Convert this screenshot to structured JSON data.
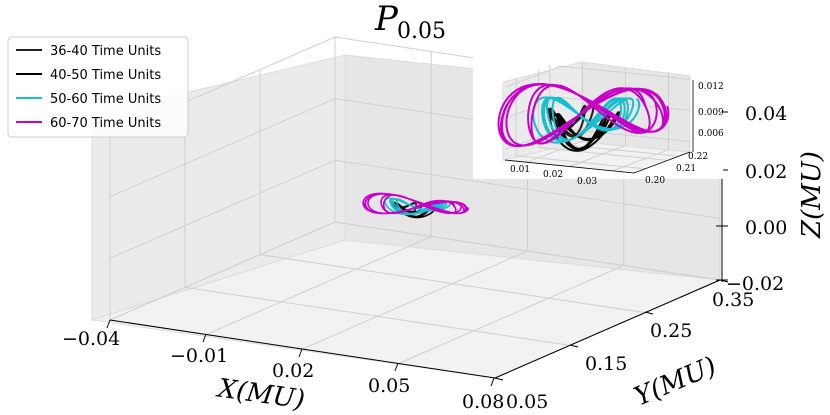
{
  "chart_data": {
    "type": "line3d",
    "title": "P",
    "title_subscript": "0.05",
    "xlabel": "X(MU)",
    "ylabel": "Y(MU)",
    "zlabel": "Z(MU)",
    "xlim": [
      -0.04,
      0.08
    ],
    "ylim": [
      0.05,
      0.35
    ],
    "zlim": [
      -0.02,
      0.04
    ],
    "x_ticks": [
      "−0.04",
      "−0.01",
      "0.02",
      "0.05",
      "0.08"
    ],
    "y_ticks": [
      "0.05",
      "0.15",
      "0.25",
      "0.35"
    ],
    "z_ticks": [
      "−0.02",
      "0.00",
      "0.02",
      "0.04"
    ],
    "grid": true,
    "legend_position": "top-left",
    "series": [
      {
        "name": "36-40 Time Units",
        "color": "#222222",
        "center": [
          0.015,
          0.21,
          0.0085
        ],
        "radius": [
          0.004,
          0.005,
          0.0012
        ],
        "loops": 3
      },
      {
        "name": "40-50 Time Units",
        "color": "#000000",
        "center": [
          0.017,
          0.212,
          0.0075
        ],
        "radius": [
          0.005,
          0.006,
          0.0015
        ],
        "loops": 4
      },
      {
        "name": "50-60 Time Units",
        "color": "#17becf",
        "center": [
          0.018,
          0.211,
          0.0088
        ],
        "radius": [
          0.007,
          0.008,
          0.0018
        ],
        "loops": 5
      },
      {
        "name": "60-70 Time Units",
        "color": "#c800c8",
        "center": [
          0.018,
          0.211,
          0.0092
        ],
        "radius": [
          0.012,
          0.012,
          0.0025
        ],
        "loops": 6
      }
    ],
    "inset": {
      "xlim": [
        0.005,
        0.035
      ],
      "ylim": [
        0.2,
        0.225
      ],
      "zlim": [
        0.005,
        0.0125
      ],
      "x_ticks": [
        "0.01",
        "0.02",
        "0.03"
      ],
      "y_ticks": [
        "0.20",
        "0.21",
        "0.22"
      ],
      "z_ticks": [
        "0.006",
        "0.009",
        "0.012"
      ]
    }
  }
}
